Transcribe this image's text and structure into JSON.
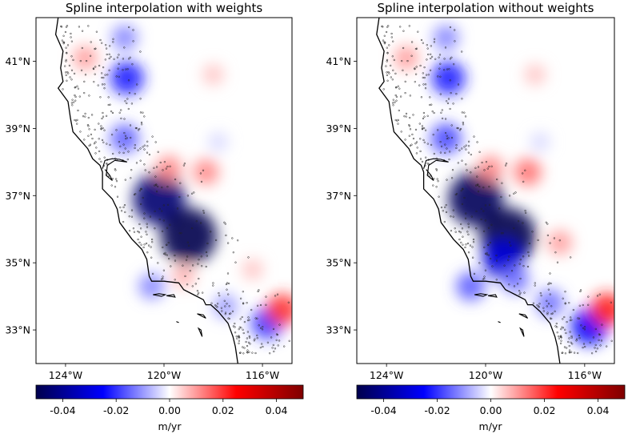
{
  "panels": [
    {
      "title": "Spline interpolation with weights",
      "blobs": [
        {
          "lon": -120.2,
          "lat": 36.9,
          "value": -0.045
        },
        {
          "lon": -119.0,
          "lat": 35.8,
          "value": -0.05
        },
        {
          "lon": -121.5,
          "lat": 40.5,
          "value": -0.022
        },
        {
          "lon": -121.6,
          "lat": 38.7,
          "value": -0.016
        },
        {
          "lon": -121.6,
          "lat": 41.7,
          "value": -0.012
        },
        {
          "lon": -117.8,
          "lat": 38.6,
          "value": -0.004
        },
        {
          "lon": -115.8,
          "lat": 33.2,
          "value": -0.02
        },
        {
          "lon": -117.5,
          "lat": 33.7,
          "value": -0.01
        },
        {
          "lon": -120.5,
          "lat": 34.3,
          "value": -0.012
        },
        {
          "lon": -115.2,
          "lat": 33.6,
          "value": 0.02
        },
        {
          "lon": -119.8,
          "lat": 37.8,
          "value": 0.012
        },
        {
          "lon": -118.3,
          "lat": 37.7,
          "value": 0.012
        },
        {
          "lon": -123.2,
          "lat": 41.1,
          "value": 0.01
        },
        {
          "lon": -118.0,
          "lat": 40.6,
          "value": 0.006
        },
        {
          "lon": -119.2,
          "lat": 34.6,
          "value": 0.008
        },
        {
          "lon": -116.4,
          "lat": 34.8,
          "value": 0.006
        }
      ]
    },
    {
      "title": "Spline interpolation without weights",
      "blobs": [
        {
          "lon": -120.4,
          "lat": 36.9,
          "value": -0.048
        },
        {
          "lon": -119.1,
          "lat": 35.8,
          "value": -0.05
        },
        {
          "lon": -119.3,
          "lat": 35.1,
          "value": -0.03
        },
        {
          "lon": -121.5,
          "lat": 40.5,
          "value": -0.022
        },
        {
          "lon": -121.6,
          "lat": 38.7,
          "value": -0.018
        },
        {
          "lon": -121.6,
          "lat": 41.7,
          "value": -0.012
        },
        {
          "lon": -117.8,
          "lat": 38.6,
          "value": -0.004
        },
        {
          "lon": -115.8,
          "lat": 33.1,
          "value": -0.026
        },
        {
          "lon": -117.4,
          "lat": 33.8,
          "value": -0.014
        },
        {
          "lon": -120.6,
          "lat": 34.3,
          "value": -0.016
        },
        {
          "lon": -118.8,
          "lat": 34.5,
          "value": -0.014
        },
        {
          "lon": -115.1,
          "lat": 33.6,
          "value": 0.022
        },
        {
          "lon": -119.8,
          "lat": 37.8,
          "value": 0.012
        },
        {
          "lon": -118.3,
          "lat": 37.7,
          "value": 0.014
        },
        {
          "lon": -123.2,
          "lat": 41.1,
          "value": 0.01
        },
        {
          "lon": -118.0,
          "lat": 40.6,
          "value": 0.006
        },
        {
          "lon": -117.0,
          "lat": 35.6,
          "value": 0.01
        }
      ]
    }
  ],
  "axes": {
    "lon_range": [
      -125.2,
      -114.8
    ],
    "lat_range": [
      32.0,
      42.3
    ],
    "x_ticks": [
      {
        "value": -124,
        "label": "124°W"
      },
      {
        "value": -120,
        "label": "120°W"
      },
      {
        "value": -116,
        "label": "116°W"
      }
    ],
    "y_ticks": [
      {
        "value": 33,
        "label": "33°N"
      },
      {
        "value": 35,
        "label": "35°N"
      },
      {
        "value": 37,
        "label": "37°N"
      },
      {
        "value": 39,
        "label": "39°N"
      },
      {
        "value": 41,
        "label": "41°N"
      }
    ]
  },
  "colorbar": {
    "cmap": "seismic",
    "range": [
      -0.05,
      0.05
    ],
    "ticks": [
      "-0.04",
      "-0.02",
      "0.00",
      "0.02",
      "0.04"
    ],
    "tick_values": [
      -0.04,
      -0.02,
      0.0,
      0.02,
      0.04
    ],
    "label": "m/yr"
  },
  "coastline": [
    [
      -124.3,
      42.3
    ],
    [
      -124.4,
      41.8
    ],
    [
      -124.1,
      41.3
    ],
    [
      -124.2,
      40.8
    ],
    [
      -124.1,
      40.4
    ],
    [
      -124.3,
      40.2
    ],
    [
      -123.9,
      39.8
    ],
    [
      -123.8,
      39.3
    ],
    [
      -123.7,
      38.9
    ],
    [
      -123.1,
      38.4
    ],
    [
      -122.9,
      38.1
    ],
    [
      -122.6,
      37.9
    ],
    [
      -122.5,
      37.7
    ],
    [
      -122.5,
      37.2
    ],
    [
      -122.1,
      36.9
    ],
    [
      -121.9,
      36.6
    ],
    [
      -121.8,
      36.2
    ],
    [
      -121.3,
      35.7
    ],
    [
      -120.9,
      35.4
    ],
    [
      -120.7,
      35.1
    ],
    [
      -120.6,
      34.6
    ],
    [
      -120.5,
      34.45
    ],
    [
      -120.0,
      34.45
    ],
    [
      -119.4,
      34.4
    ],
    [
      -119.2,
      34.2
    ],
    [
      -118.8,
      34.05
    ],
    [
      -118.4,
      33.9
    ],
    [
      -118.3,
      33.75
    ],
    [
      -118.1,
      33.75
    ],
    [
      -117.8,
      33.55
    ],
    [
      -117.4,
      33.2
    ],
    [
      -117.2,
      32.8
    ],
    [
      -117.1,
      32.5
    ],
    [
      -117.0,
      32.0
    ]
  ],
  "bay": [
    [
      -122.5,
      37.8
    ],
    [
      -122.4,
      38.05
    ],
    [
      -122.1,
      38.1
    ],
    [
      -121.8,
      38.08
    ],
    [
      -121.5,
      38.0
    ],
    [
      -122.0,
      38.05
    ],
    [
      -122.3,
      37.9
    ],
    [
      -122.35,
      37.6
    ],
    [
      -122.1,
      37.45
    ],
    [
      -122.2,
      37.6
    ],
    [
      -122.4,
      37.78
    ]
  ],
  "islands": [
    [
      [
        -120.45,
        34.05
      ],
      [
        -120.1,
        34.0
      ],
      [
        -119.95,
        34.05
      ],
      [
        -120.2,
        34.08
      ]
    ],
    [
      [
        -119.9,
        34.02
      ],
      [
        -119.55,
        33.98
      ],
      [
        -119.6,
        34.05
      ]
    ],
    [
      [
        -118.65,
        33.48
      ],
      [
        -118.3,
        33.35
      ],
      [
        -118.4,
        33.45
      ]
    ],
    [
      [
        -118.6,
        33.05
      ],
      [
        -118.45,
        32.8
      ],
      [
        -118.5,
        33.0
      ]
    ],
    [
      [
        -119.5,
        33.25
      ],
      [
        -119.4,
        33.22
      ]
    ]
  ],
  "colors": {
    "coast": "#000000",
    "station": "#222222"
  }
}
